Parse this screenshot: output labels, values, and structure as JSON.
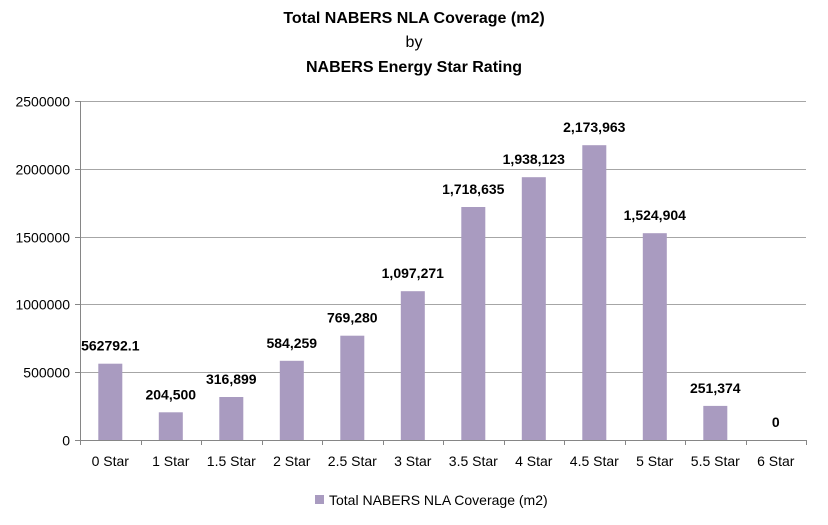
{
  "chart_data": {
    "type": "bar",
    "title_lines": [
      "Total NABERS NLA Coverage (m2)",
      "by",
      "NABERS Energy Star Rating"
    ],
    "categories": [
      "0 Star",
      "1 Star",
      "1.5 Star",
      "2 Star",
      "2.5 Star",
      "3 Star",
      "3.5 Star",
      "4 Star",
      "4.5 Star",
      "5 Star",
      "5.5 Star",
      "6 Star"
    ],
    "series": [
      {
        "name": "Total NABERS NLA Coverage (m2)",
        "values": [
          562792.1,
          204500,
          316899,
          584259,
          769280,
          1097271,
          1718635,
          1938123,
          2173963,
          1524904,
          251374,
          0
        ],
        "labels": [
          "562792.1",
          "204,500",
          "316,899",
          "584,259",
          "769,280",
          "1,097,271",
          "1,718,635",
          "1,938,123",
          "2,173,963",
          "1,524,904",
          "251,374",
          "0"
        ]
      }
    ],
    "ylim": [
      0,
      2500000
    ],
    "yticks": [
      0,
      500000,
      1000000,
      1500000,
      2000000,
      2500000
    ],
    "ytick_labels": [
      "0",
      "500000",
      "1000000",
      "1500000",
      "2000000",
      "2500000"
    ],
    "grid": true,
    "legend_position": "bottom",
    "colors": {
      "bar": "#a99bc0",
      "grid": "#a6a6a6",
      "axis": "#868686"
    }
  }
}
